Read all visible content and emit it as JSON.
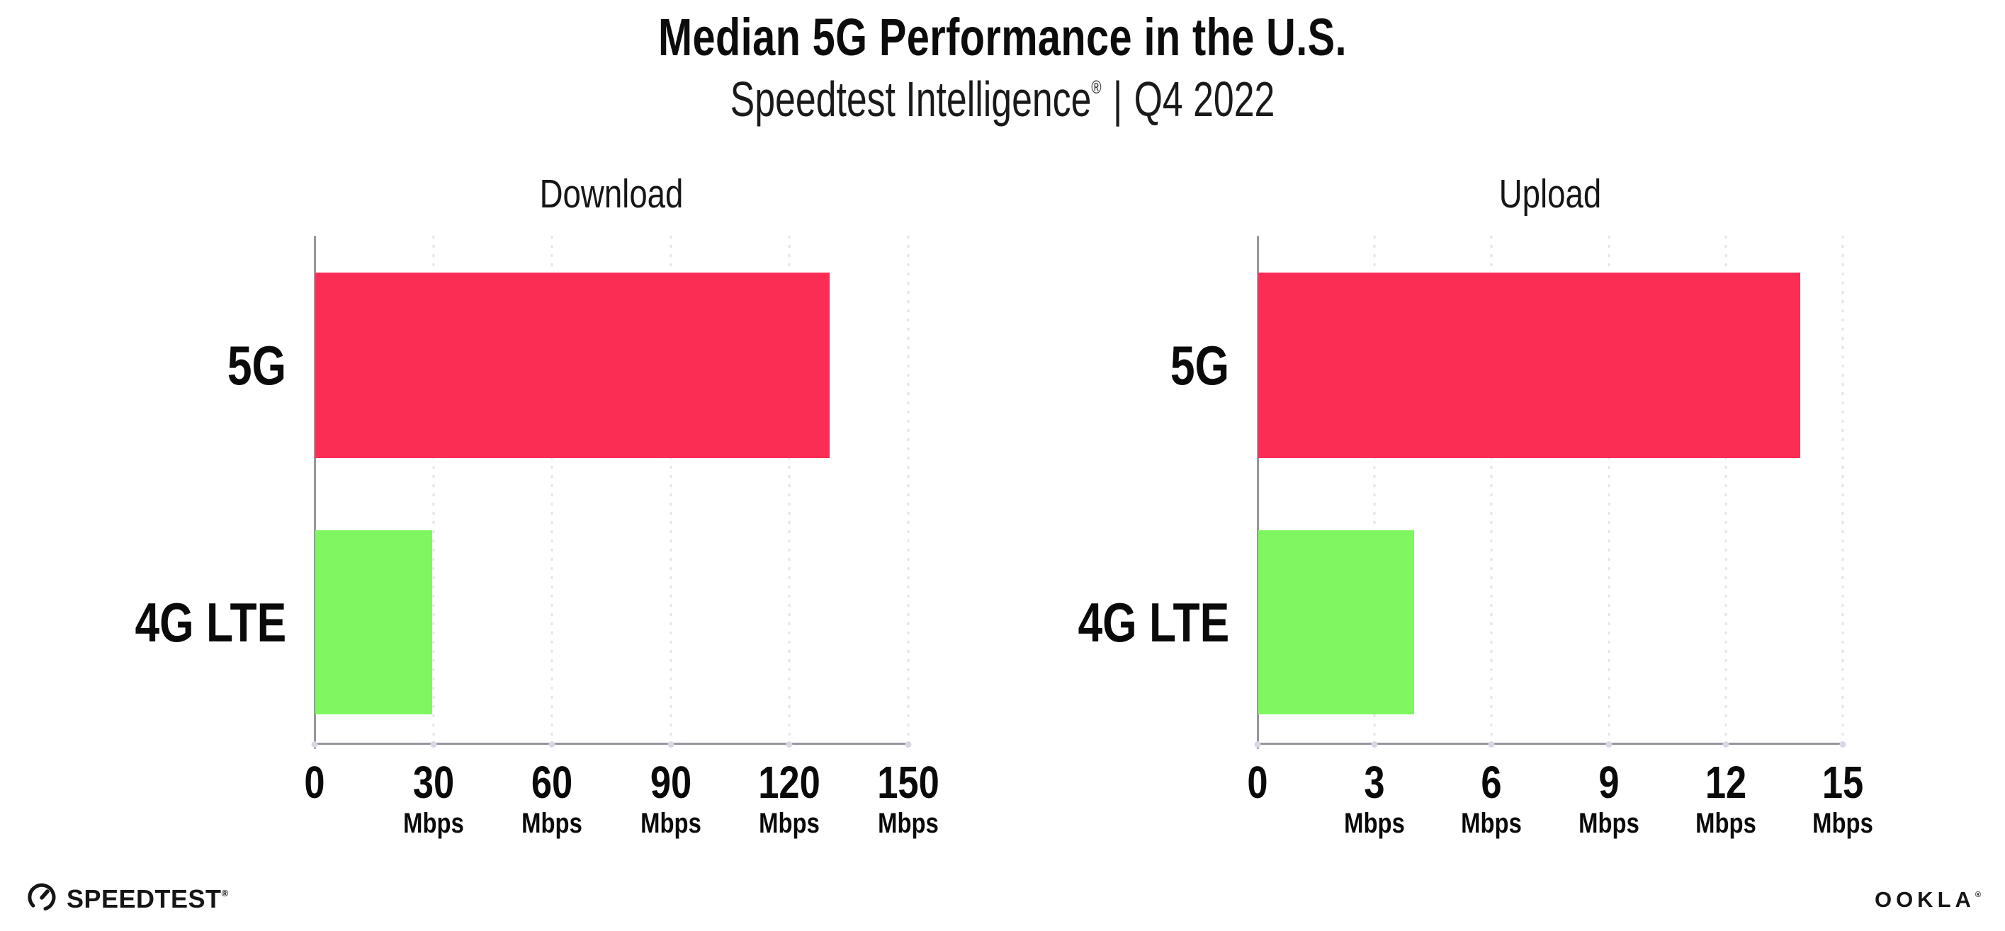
{
  "title": "Median 5G Performance in the U.S.",
  "subtitle": {
    "brand": "Speedtest Intelligence",
    "registered_mark": "®",
    "separator": "|",
    "period": "Q4 2022"
  },
  "chart_data": [
    {
      "type": "bar",
      "orientation": "horizontal",
      "title": "Download",
      "categories": [
        "5G",
        "4G LTE"
      ],
      "values": [
        130,
        29.5
      ],
      "unit": "Mbps",
      "xlim": [
        0,
        150
      ],
      "xticks": [
        0,
        30,
        60,
        90,
        120,
        150
      ],
      "xtick_labels": [
        "0",
        "30",
        "60",
        "90",
        "120",
        "150"
      ],
      "tick_unit_label": "Mbps",
      "grid": "dotted-vertical",
      "legend_position": "none"
    },
    {
      "type": "bar",
      "orientation": "horizontal",
      "title": "Upload",
      "categories": [
        "5G",
        "4G LTE"
      ],
      "values": [
        13.9,
        4
      ],
      "unit": "Mbps",
      "xlim": [
        0,
        15
      ],
      "xticks": [
        0,
        3,
        6,
        9,
        12,
        15
      ],
      "xtick_labels": [
        "0",
        "3",
        "6",
        "9",
        "12",
        "15"
      ],
      "tick_unit_label": "Mbps",
      "grid": "dotted-vertical",
      "legend_position": "none"
    }
  ],
  "footer": {
    "speedtest_label": "SPEEDTEST",
    "speedtest_mark": "®",
    "ookla_label": "OOKLA",
    "ookla_mark": "®"
  },
  "colors": {
    "bar_5g": "#fc2d55",
    "bar_4g_lte": "#80f660",
    "axis_line": "#96969e",
    "gridline": "#e4e4ee",
    "grid_dot": "#d8d8e4",
    "text": "#0c0c0c"
  }
}
